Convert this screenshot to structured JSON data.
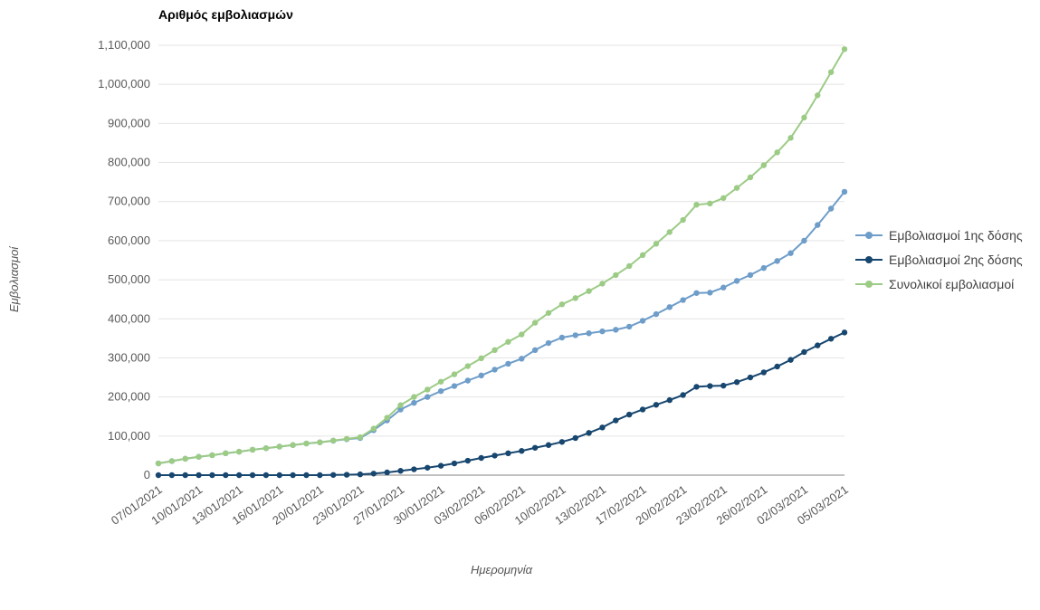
{
  "chart_data": {
    "type": "line",
    "title": "Αριθμός εμβολιασμών",
    "xlabel": "Ημερομηνία",
    "ylabel": "Εμβολιασμοί",
    "ylim": [
      0,
      1100000
    ],
    "y_tick_step": 100000,
    "x_tick_every": 3,
    "grid": true,
    "legend_position": "right",
    "x": [
      "07/01/2021",
      "08/01/2021",
      "09/01/2021",
      "10/01/2021",
      "11/01/2021",
      "12/01/2021",
      "13/01/2021",
      "14/01/2021",
      "15/01/2021",
      "16/01/2021",
      "18/01/2021",
      "19/01/2021",
      "20/01/2021",
      "21/01/2021",
      "22/01/2021",
      "23/01/2021",
      "25/01/2021",
      "26/01/2021",
      "27/01/2021",
      "28/01/2021",
      "29/01/2021",
      "30/01/2021",
      "01/02/2021",
      "02/02/2021",
      "03/02/2021",
      "04/02/2021",
      "05/02/2021",
      "06/02/2021",
      "08/02/2021",
      "09/02/2021",
      "10/02/2021",
      "11/02/2021",
      "12/02/2021",
      "13/02/2021",
      "15/02/2021",
      "16/02/2021",
      "17/02/2021",
      "18/02/2021",
      "19/02/2021",
      "20/02/2021",
      "21/02/2021",
      "22/02/2021",
      "23/02/2021",
      "24/02/2021",
      "25/02/2021",
      "26/02/2021",
      "27/02/2021",
      "01/03/2021",
      "02/03/2021",
      "03/03/2021",
      "04/03/2021",
      "05/03/2021"
    ],
    "series": [
      {
        "name": "Εμβολιασμοί 1ης δόσης",
        "color": "#6E9DC9",
        "values": [
          30000,
          36000,
          42000,
          47000,
          51000,
          56000,
          60000,
          65000,
          69000,
          73000,
          77000,
          81000,
          84000,
          88000,
          92000,
          95000,
          115000,
          140000,
          168000,
          185000,
          200000,
          215000,
          228000,
          242000,
          255000,
          270000,
          285000,
          298000,
          320000,
          338000,
          352000,
          358000,
          363000,
          368000,
          372000,
          380000,
          395000,
          412000,
          430000,
          448000,
          466000,
          467000,
          480000,
          497000,
          512000,
          530000,
          548000,
          568000,
          600000,
          640000,
          682000,
          725000
        ]
      },
      {
        "name": "Εμβολιασμοί 2ης δόσης",
        "color": "#17466F",
        "values": [
          0,
          0,
          0,
          0,
          0,
          0,
          0,
          0,
          0,
          0,
          0,
          0,
          0,
          500,
          1000,
          2000,
          4000,
          7000,
          11000,
          15000,
          19000,
          24000,
          30000,
          37000,
          44000,
          50000,
          56000,
          62000,
          70000,
          77000,
          85000,
          95000,
          108000,
          122000,
          140000,
          155000,
          168000,
          180000,
          192000,
          205000,
          226000,
          228000,
          229000,
          238000,
          250000,
          263000,
          278000,
          295000,
          315000,
          332000,
          349000,
          365000
        ]
      },
      {
        "name": "Συνολικοί εμβολιασμοί",
        "color": "#9CCB86",
        "values": [
          30000,
          36000,
          42000,
          47000,
          51000,
          56000,
          60000,
          65000,
          69000,
          73000,
          77000,
          81000,
          84000,
          88500,
          93000,
          97000,
          119000,
          147000,
          179000,
          200000,
          219000,
          239000,
          258000,
          279000,
          299000,
          320000,
          341000,
          360000,
          390000,
          415000,
          437000,
          453000,
          471000,
          490000,
          512000,
          535000,
          563000,
          592000,
          622000,
          653000,
          692000,
          695000,
          709000,
          735000,
          762000,
          793000,
          826000,
          863000,
          915000,
          972000,
          1031000,
          1090000
        ]
      }
    ]
  },
  "colors": {
    "gridline": "#e4e4e4",
    "axis_line": "#808080",
    "tick_text": "#595959"
  }
}
